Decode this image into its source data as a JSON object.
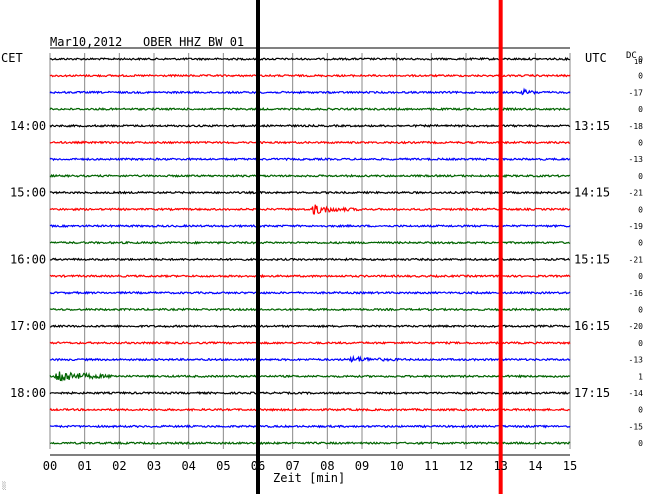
{
  "header": {
    "date": "Mar10,2012",
    "station": "OBER HHZ BW 01"
  },
  "labels": {
    "left_zone": "CET",
    "right_zone": "UTC",
    "dc_label": "DC",
    "dc_sub": "10",
    "corner_mark": "░"
  },
  "chart_data": {
    "type": "line",
    "title": "",
    "xlabel": "Zeit [min]",
    "xlim": [
      0,
      15
    ],
    "x_ticks": [
      "00",
      "01",
      "02",
      "03",
      "04",
      "05",
      "06",
      "07",
      "08",
      "09",
      "10",
      "11",
      "12",
      "13",
      "14",
      "15"
    ],
    "trace_colors": [
      "#000000",
      "#ff0000",
      "#0000ff",
      "#006400"
    ],
    "traces": 24,
    "trace_minutes": 15,
    "grid": true,
    "left_hour_labels": [
      {
        "trace": 4,
        "label": "14:00"
      },
      {
        "trace": 8,
        "label": "15:00"
      },
      {
        "trace": 12,
        "label": "16:00"
      },
      {
        "trace": 16,
        "label": "17:00"
      },
      {
        "trace": 20,
        "label": "18:00"
      }
    ],
    "right_hour_labels": [
      {
        "trace": 4,
        "label": "13:15"
      },
      {
        "trace": 8,
        "label": "14:15"
      },
      {
        "trace": 12,
        "label": "15:15"
      },
      {
        "trace": 16,
        "label": "16:15"
      },
      {
        "trace": 20,
        "label": "17:15"
      }
    ],
    "dc_offsets": [
      "0",
      "0",
      "-17",
      "0",
      "-18",
      "0",
      "-13",
      "0",
      "-21",
      "0",
      "-19",
      "0",
      "-21",
      "0",
      "-16",
      "0",
      "-20",
      "0",
      "-13",
      "1",
      "-14",
      "0",
      "-15",
      "0"
    ],
    "markers": [
      {
        "minute": 6.0,
        "color": "#000000"
      },
      {
        "minute": 13.0,
        "color": "#ff0000"
      }
    ],
    "events": [
      {
        "trace": 2,
        "start": 13.6,
        "end": 14.3,
        "amplitude": 3
      },
      {
        "trace": 9,
        "start": 7.5,
        "end": 9.0,
        "amplitude": 6
      },
      {
        "trace": 18,
        "start": 8.6,
        "end": 10.3,
        "amplitude": 3
      },
      {
        "trace": 19,
        "start": 0.1,
        "end": 2.0,
        "amplitude": 8
      }
    ]
  }
}
